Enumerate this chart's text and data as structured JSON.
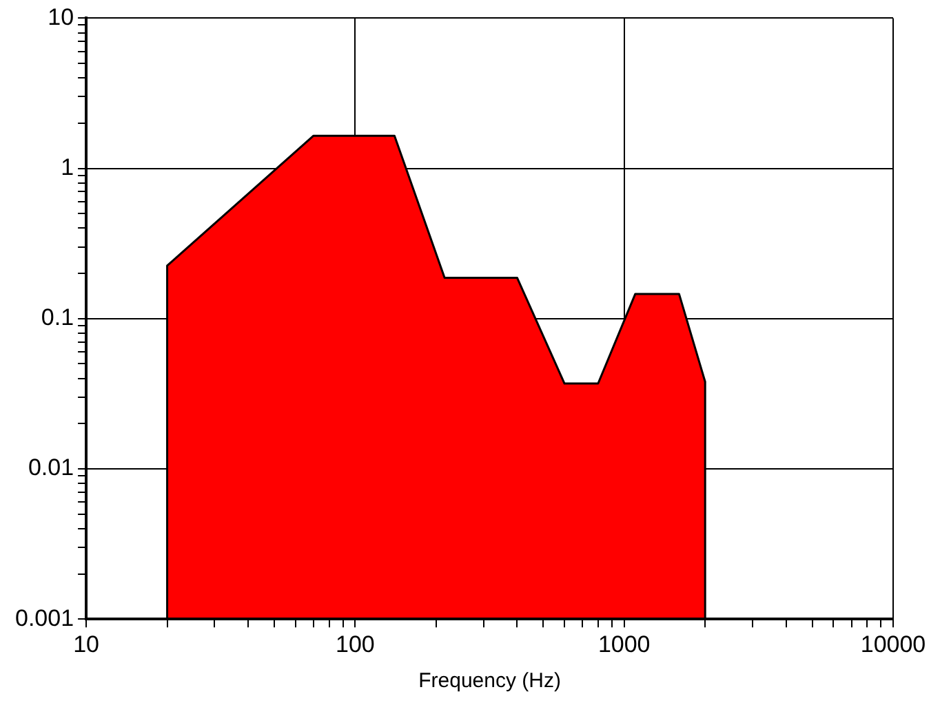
{
  "chart_data": {
    "type": "area",
    "xlabel": "Frequency (Hz)",
    "x": [
      20,
      20,
      70,
      140,
      215,
      400,
      600,
      800,
      1100,
      1600,
      2000,
      2000
    ],
    "series": [
      {
        "color": "#ff0000",
        "values": [
          0.001,
          0.225,
          1.65,
          1.65,
          0.187,
          0.187,
          0.037,
          0.037,
          0.146,
          0.146,
          0.038,
          0.001
        ]
      }
    ],
    "log": "xy",
    "xlim": [
      10,
      10000
    ],
    "ylim": [
      0.001,
      10
    ],
    "xticks": [
      10,
      {
        "value": 20,
        "label": null
      },
      {
        "value": 30,
        "label": null
      },
      {
        "value": 40,
        "label": null
      },
      {
        "value": 50,
        "label": null
      },
      {
        "value": 60,
        "label": null
      },
      {
        "value": 70,
        "label": null
      },
      {
        "value": 80,
        "label": null
      },
      {
        "value": 90,
        "label": null
      },
      100,
      {
        "value": 200,
        "label": null
      },
      {
        "value": 300,
        "label": null
      },
      {
        "value": 400,
        "label": null
      },
      {
        "value": 500,
        "label": null
      },
      {
        "value": 600,
        "label": null
      },
      {
        "value": 700,
        "label": null
      },
      {
        "value": 800,
        "label": null
      },
      {
        "value": 900,
        "label": null
      },
      1000,
      {
        "value": 2000,
        "label": null
      },
      {
        "value": 3000,
        "label": null
      },
      {
        "value": 4000,
        "label": null
      },
      {
        "value": 5000,
        "label": null
      },
      {
        "value": 6000,
        "label": null
      },
      {
        "value": 7000,
        "label": null
      },
      {
        "value": 8000,
        "label": null
      },
      {
        "value": 9000,
        "label": null
      },
      10000
    ],
    "yticks": [
      0.001,
      {
        "value": 0.002,
        "label": null
      },
      {
        "value": 0.003,
        "label": null
      },
      {
        "value": 0.004,
        "label": null
      },
      {
        "value": 0.005,
        "label": null
      },
      {
        "value": 0.006,
        "label": null
      },
      {
        "value": 0.007,
        "label": null
      },
      {
        "value": 0.008,
        "label": null
      },
      {
        "value": 0.009,
        "label": null
      },
      0.01,
      {
        "value": 0.02,
        "label": null
      },
      {
        "value": 0.03,
        "label": null
      },
      {
        "value": 0.04,
        "label": null
      },
      {
        "value": 0.05,
        "label": null
      },
      {
        "value": 0.06,
        "label": null
      },
      {
        "value": 0.07,
        "label": null
      },
      {
        "value": 0.08,
        "label": null
      },
      {
        "value": 0.09,
        "label": null
      },
      0.1,
      {
        "value": 0.2,
        "label": null
      },
      {
        "value": 0.3,
        "label": null
      },
      {
        "value": 0.4,
        "label": null
      },
      {
        "value": 0.5,
        "label": null
      },
      {
        "value": 0.6,
        "label": null
      },
      {
        "value": 0.7,
        "label": null
      },
      {
        "value": 0.8,
        "label": null
      },
      {
        "value": 0.9,
        "label": null
      },
      1,
      {
        "value": 2,
        "label": null
      },
      {
        "value": 3,
        "label": null
      },
      {
        "value": 4,
        "label": null
      },
      {
        "value": 5,
        "label": null
      },
      {
        "value": 6,
        "label": null
      },
      {
        "value": 7,
        "label": null
      },
      {
        "value": 8,
        "label": null
      },
      {
        "value": 9,
        "label": null
      },
      10
    ],
    "grid": true,
    "legend": false,
    "marker": "none",
    "line_style": "solid"
  }
}
